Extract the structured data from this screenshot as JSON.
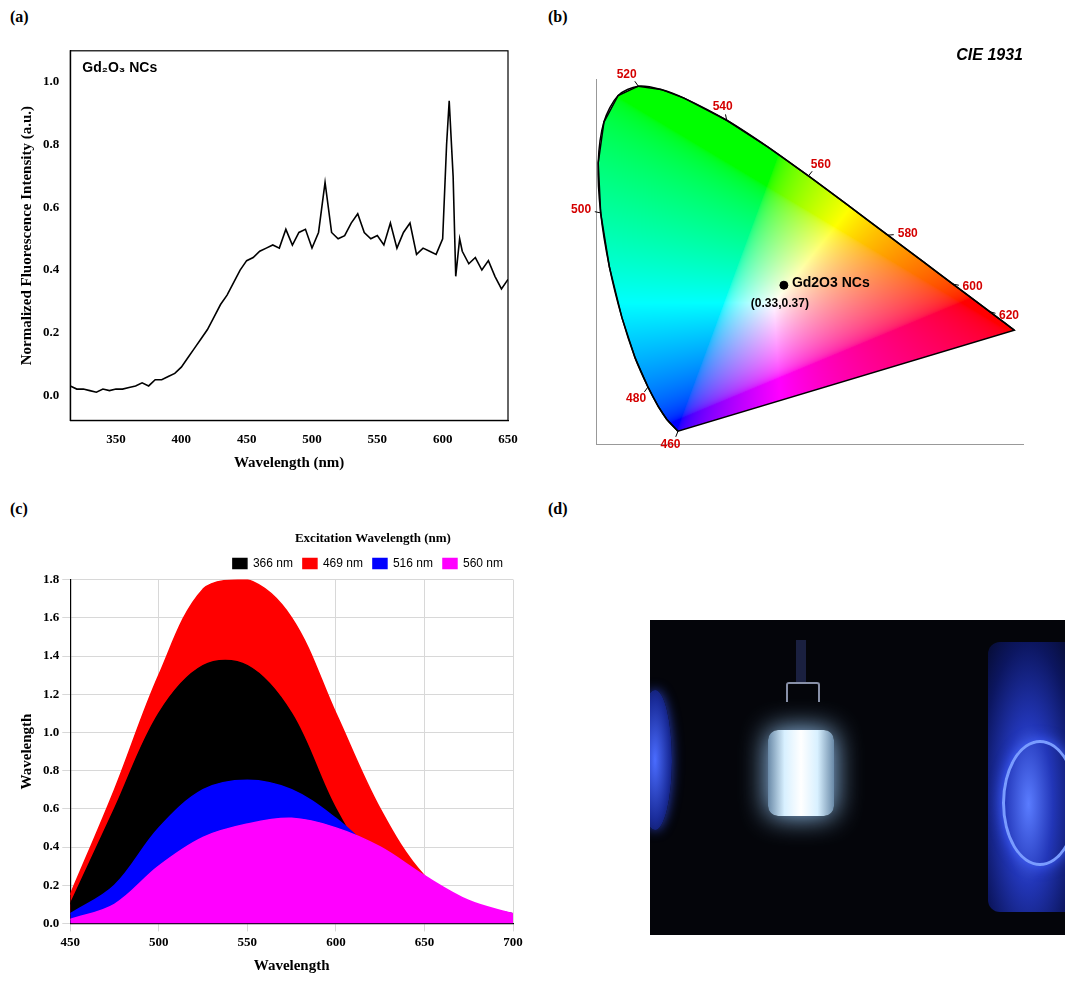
{
  "chart_data": [
    {
      "panel": "(a)",
      "type": "line",
      "title": "Gd₂O₃ NCs",
      "xlabel": "Wavelength (nm)",
      "ylabel": "Normalized Fluorescence Intensity (a.u.)",
      "x": [
        315,
        320,
        325,
        330,
        335,
        340,
        345,
        350,
        355,
        360,
        365,
        370,
        375,
        380,
        385,
        390,
        395,
        400,
        405,
        410,
        415,
        420,
        425,
        430,
        435,
        440,
        445,
        450,
        455,
        460,
        465,
        470,
        475,
        480,
        485,
        490,
        495,
        500,
        505,
        510,
        515,
        520,
        525,
        530,
        535,
        540,
        545,
        550,
        555,
        560,
        565,
        570,
        575,
        580,
        585,
        590,
        595,
        600,
        603,
        605,
        608,
        610,
        613,
        615,
        620,
        625,
        630,
        635,
        640,
        645,
        650
      ],
      "values": [
        0.03,
        0.02,
        0.02,
        0.015,
        0.01,
        0.02,
        0.015,
        0.02,
        0.02,
        0.025,
        0.03,
        0.04,
        0.03,
        0.05,
        0.05,
        0.06,
        0.07,
        0.09,
        0.12,
        0.15,
        0.18,
        0.21,
        0.25,
        0.29,
        0.32,
        0.36,
        0.4,
        0.43,
        0.44,
        0.46,
        0.47,
        0.48,
        0.47,
        0.53,
        0.48,
        0.52,
        0.53,
        0.47,
        0.52,
        0.68,
        0.52,
        0.5,
        0.51,
        0.55,
        0.58,
        0.52,
        0.5,
        0.51,
        0.48,
        0.55,
        0.47,
        0.52,
        0.55,
        0.45,
        0.47,
        0.46,
        0.45,
        0.5,
        0.8,
        0.94,
        0.7,
        0.38,
        0.5,
        0.46,
        0.42,
        0.44,
        0.4,
        0.43,
        0.38,
        0.34,
        0.37
      ],
      "color": "#000000",
      "xlim": [
        315,
        650
      ],
      "xticks": [
        350,
        400,
        450,
        500,
        550,
        600,
        650
      ],
      "ylim": [
        -0.08,
        1.1
      ],
      "yticks": [
        {
          "value": 0,
          "label": "0.0"
        },
        {
          "value": 0.2,
          "label": "0.2"
        },
        {
          "value": 0.4,
          "label": "0.4"
        },
        {
          "value": 0.6,
          "label": "0.6"
        },
        {
          "value": 0.8,
          "label": "0.8"
        },
        {
          "value": 1,
          "label": "1.0"
        }
      ],
      "grid": false
    },
    {
      "panel": "(b)",
      "type": "chromaticity",
      "title": "CIE 1931",
      "locus": {
        "wavelength": [
          460,
          470,
          475,
          480,
          485,
          490,
          495,
          500,
          505,
          510,
          515,
          520,
          525,
          530,
          540,
          550,
          560,
          570,
          580,
          590,
          600,
          610,
          620,
          640,
          700
        ],
        "x": [
          0.144,
          0.1241,
          0.1096,
          0.0913,
          0.0687,
          0.0454,
          0.0235,
          0.0082,
          0.0039,
          0.0139,
          0.0389,
          0.0743,
          0.1142,
          0.1547,
          0.2296,
          0.3016,
          0.3731,
          0.4441,
          0.5125,
          0.5752,
          0.627,
          0.6658,
          0.6915,
          0.719,
          0.7347
        ],
        "y": [
          0.0297,
          0.0578,
          0.0868,
          0.1327,
          0.2007,
          0.295,
          0.4127,
          0.5384,
          0.6548,
          0.7502,
          0.812,
          0.8338,
          0.8262,
          0.8059,
          0.7543,
          0.6923,
          0.6245,
          0.5547,
          0.4866,
          0.4242,
          0.3725,
          0.334,
          0.3083,
          0.2809,
          0.2653
        ]
      },
      "wavelength_labels": [
        460,
        480,
        500,
        520,
        540,
        560,
        580,
        600,
        620
      ],
      "points": [
        {
          "name": "Gd2O3 NCs",
          "x": 0.33,
          "y": 0.37,
          "label": "(0.33,0.37)"
        }
      ],
      "xlim": [
        0,
        0.75
      ],
      "ylim": [
        0,
        0.85
      ],
      "tick_labels": false
    },
    {
      "panel": "(c)",
      "type": "area",
      "xlabel": "Wavelength",
      "ylabel": "Wavelength",
      "zlabel": "Excitation Wavelength (nm)",
      "x": [
        450,
        475,
        500,
        525,
        550,
        575,
        600,
        625,
        650,
        675,
        700
      ],
      "series": [
        {
          "name": "366 nm",
          "color": "#000000",
          "values": [
            0.1,
            0.6,
            1.1,
            1.35,
            1.35,
            1.1,
            0.6,
            0.25,
            0.1,
            0.05,
            0.02
          ]
        },
        {
          "name": "469 nm",
          "color": "#ff0000",
          "values": [
            0.15,
            0.7,
            1.3,
            1.75,
            1.8,
            1.6,
            1.1,
            0.6,
            0.25,
            0.1,
            0.05
          ]
        },
        {
          "name": "516 nm",
          "color": "#0000ff",
          "values": [
            0.05,
            0.2,
            0.5,
            0.7,
            0.75,
            0.7,
            0.55,
            0.35,
            0.2,
            0.1,
            0.05
          ]
        },
        {
          "name": "560 nm",
          "color": "#ff00ff",
          "values": [
            0.02,
            0.1,
            0.3,
            0.45,
            0.52,
            0.55,
            0.5,
            0.4,
            0.25,
            0.12,
            0.05
          ]
        }
      ],
      "xlim": [
        450,
        700
      ],
      "xticks": [
        450,
        500,
        550,
        600,
        650,
        700
      ],
      "ylim": [
        0,
        1.8
      ],
      "yticks": [
        {
          "value": 0,
          "label": "0.0"
        },
        {
          "value": 0.2,
          "label": "0.2"
        },
        {
          "value": 0.4,
          "label": "0.4"
        },
        {
          "value": 0.6,
          "label": "0.6"
        },
        {
          "value": 0.8,
          "label": "0.8"
        },
        {
          "value": 1,
          "label": "1.0"
        },
        {
          "value": 1.2,
          "label": "1.2"
        },
        {
          "value": 1.4,
          "label": "1.4"
        },
        {
          "value": 1.6,
          "label": "1.6"
        },
        {
          "value": 1.8,
          "label": "1.8"
        }
      ],
      "grid": true,
      "legend": "top-right"
    },
    {
      "panel": "(d)",
      "type": "photo"
    }
  ]
}
